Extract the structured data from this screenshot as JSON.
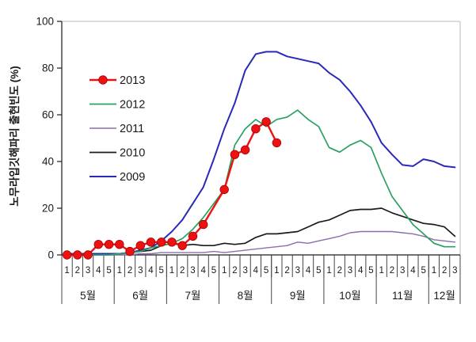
{
  "chart_data": {
    "type": "line",
    "title": "",
    "xlabel": "",
    "ylabel": "노무라입깃해파리 출현빈도 (%)",
    "ylim": [
      0,
      100
    ],
    "y_ticks": [
      0,
      20,
      40,
      60,
      80,
      100
    ],
    "grid": false,
    "legend_position": "upper-left-inside",
    "week_axis_note": "weekly categories grouped by month",
    "months": [
      {
        "label": "5월",
        "weeks": 5
      },
      {
        "label": "6월",
        "weeks": 5
      },
      {
        "label": "7월",
        "weeks": 5
      },
      {
        "label": "8월",
        "weeks": 5
      },
      {
        "label": "9월",
        "weeks": 5
      },
      {
        "label": "10월",
        "weeks": 5
      },
      {
        "label": "11월",
        "weeks": 5
      },
      {
        "label": "12월",
        "weeks": 3
      }
    ],
    "series": [
      {
        "name": "2013",
        "color": "#ee1111",
        "marker_edge": "#a80000",
        "markers": true,
        "marker_skip": [
          14
        ],
        "line_width": 2.4,
        "values": [
          0,
          0,
          0,
          4.5,
          4.5,
          4.5,
          1.5,
          4,
          5.5,
          5.5,
          5.5,
          4,
          8,
          13,
          20.5,
          28,
          43,
          45,
          54,
          57,
          48,
          null,
          null,
          null,
          null,
          null,
          null,
          null,
          null,
          null,
          null,
          null,
          null,
          null,
          null,
          null,
          null,
          null
        ]
      },
      {
        "name": "2012",
        "color": "#2aa060",
        "markers": false,
        "line_width": 1.7,
        "values": [
          0,
          0,
          0,
          0,
          0,
          0.5,
          1,
          1.5,
          3,
          4,
          5,
          7,
          11,
          16,
          22,
          28,
          47,
          54,
          58,
          55,
          58,
          59,
          62,
          58,
          55,
          46,
          44,
          47,
          49,
          46,
          35,
          25,
          19,
          13,
          9,
          5,
          3.5,
          3.5
        ]
      },
      {
        "name": "2011",
        "color": "#8c6eaa",
        "markers": false,
        "line_width": 1.4,
        "values": [
          0,
          0,
          0,
          0,
          0,
          0,
          0,
          0.5,
          0.5,
          1,
          1,
          1,
          1,
          1,
          1.5,
          1,
          1.5,
          2,
          2.5,
          3,
          3.5,
          4,
          5.5,
          5,
          6,
          7,
          8,
          9.5,
          10,
          10,
          10,
          10,
          9.5,
          9,
          8,
          6.5,
          6,
          5.5
        ]
      },
      {
        "name": "2010",
        "color": "#1c1c1c",
        "markers": false,
        "line_width": 1.7,
        "values": [
          0,
          0,
          0,
          0,
          0.5,
          0.5,
          1,
          1.5,
          2,
          4,
          5,
          4,
          4.5,
          4,
          4,
          5,
          4.5,
          5,
          7.5,
          9,
          9,
          9.5,
          10,
          12,
          14,
          15,
          17,
          19,
          19.5,
          19.5,
          20,
          18,
          16.5,
          15,
          13.5,
          13,
          12,
          8
        ]
      },
      {
        "name": "2009",
        "color": "#2a2ab8",
        "markers": false,
        "line_width": 2.0,
        "values": [
          0.5,
          0.5,
          0.5,
          0.5,
          0.5,
          0.5,
          1,
          2,
          3,
          6,
          10,
          15,
          22,
          29,
          41,
          54,
          65,
          79,
          86,
          87,
          87,
          85,
          84,
          83,
          82,
          78,
          75,
          70,
          64,
          57,
          48,
          43,
          38.5,
          38,
          41,
          40,
          38,
          37.5
        ]
      }
    ],
    "legend": [
      "2013",
      "2012",
      "2011",
      "2010",
      "2009"
    ]
  },
  "frame": {
    "axis_color": "#1a1a1a",
    "border_color": "#b8b8b8",
    "tick_color": "#444444"
  }
}
